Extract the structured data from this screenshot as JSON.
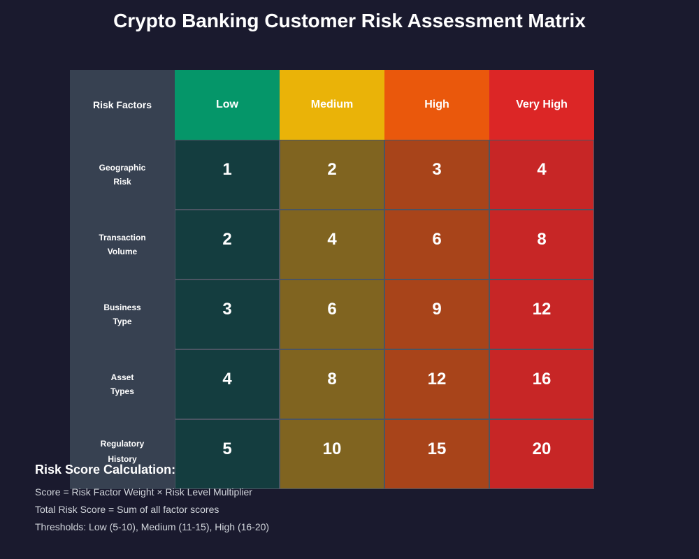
{
  "title": "Crypto Banking Customer Risk Assessment Matrix",
  "chart_data": {
    "type": "heatmap",
    "title": "Crypto Banking Customer Risk Assessment Matrix",
    "corner_label": "Risk Factors",
    "columns": [
      {
        "label": "Low",
        "color": "#059669"
      },
      {
        "label": "Medium",
        "color": "#eab308"
      },
      {
        "label": "High",
        "color": "#ea580c"
      },
      {
        "label": "Very High",
        "color": "#dc2626"
      }
    ],
    "cell_colors": [
      "#143d3f",
      "#806420",
      "#a8441a",
      "#c72626"
    ],
    "rows": [
      {
        "label": [
          "Geographic",
          "Risk"
        ],
        "values": [
          1,
          2,
          3,
          4
        ]
      },
      {
        "label": [
          "Transaction",
          "Volume"
        ],
        "values": [
          2,
          4,
          6,
          8
        ]
      },
      {
        "label": [
          "Business",
          "Type"
        ],
        "values": [
          3,
          6,
          9,
          12
        ]
      },
      {
        "label": [
          "Asset",
          "Types"
        ],
        "values": [
          4,
          8,
          12,
          16
        ]
      },
      {
        "label": [
          "Regulatory",
          "History"
        ],
        "values": [
          5,
          10,
          15,
          20
        ]
      }
    ]
  },
  "notes": {
    "title": "Risk Score Calculation:",
    "lines": [
      "Score = Risk Factor Weight × Risk Level Multiplier",
      "Total Risk Score = Sum of all factor scores",
      "Thresholds: Low (5-10), Medium (11-15), High (16-20)"
    ]
  }
}
